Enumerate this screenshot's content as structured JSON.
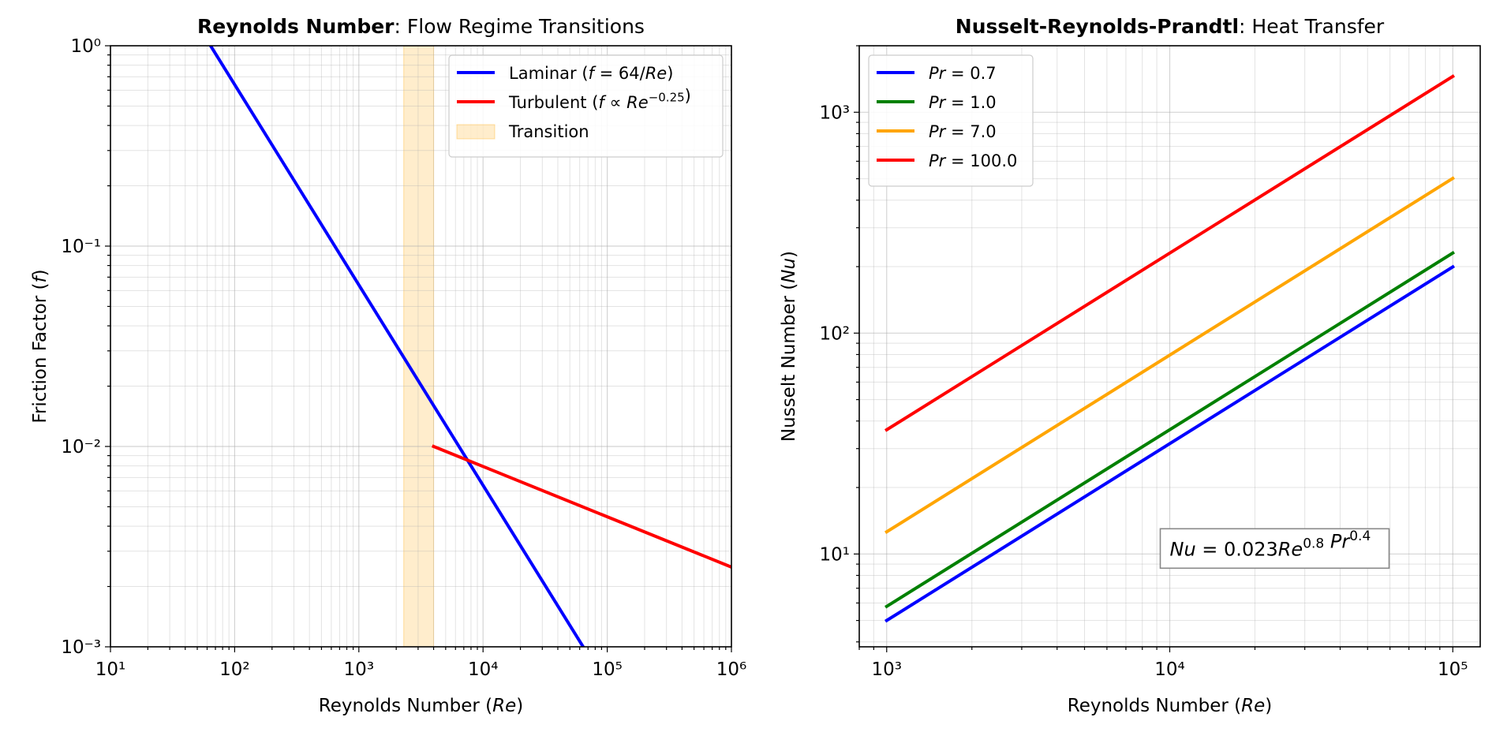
{
  "chart_data": [
    {
      "type": "line",
      "title_bold": "Reynolds Number",
      "title_rest": ": Flow Regime Transitions",
      "xlabel": "Reynolds Number (Re)",
      "ylabel": "Friction Factor (f)",
      "xscale": "log",
      "yscale": "log",
      "xlim": [
        10,
        1000000
      ],
      "ylim": [
        0.001,
        1
      ],
      "x_ticks": [
        10,
        100,
        1000,
        10000,
        100000,
        1000000
      ],
      "x_tick_labels": [
        "10¹",
        "10²",
        "10³",
        "10⁴",
        "10⁵",
        "10⁶"
      ],
      "y_ticks": [
        0.001,
        0.01,
        0.1,
        1
      ],
      "y_tick_labels": [
        "10⁻³",
        "10⁻²",
        "10⁻¹",
        "10⁰"
      ],
      "grid": true,
      "legend_position": "upper right",
      "series": [
        {
          "name": "Laminar (f = 64/Re)",
          "color": "#0000ff",
          "x": [
            10,
            64000
          ],
          "y": [
            6.4,
            0.001
          ]
        },
        {
          "name": "Turbulent (f ∝ Re^−0.25)",
          "color": "#ff0000",
          "x": [
            4000,
            1000000
          ],
          "y": [
            0.01,
            0.0025
          ]
        }
      ],
      "shaded_regions": [
        {
          "name": "Transition",
          "x_from": 2300,
          "x_to": 4000,
          "color": "#ffa500",
          "opacity": 0.2
        }
      ]
    },
    {
      "type": "line",
      "title_bold": "Nusselt-Reynolds-Prandtl",
      "title_rest": ": Heat Transfer",
      "xlabel": "Reynolds Number (Re)",
      "ylabel": "Nusselt Number (Nu)",
      "xscale": "log",
      "yscale": "log",
      "xlim": [
        800,
        125000
      ],
      "ylim": [
        3.8,
        2000
      ],
      "x_ticks": [
        1000,
        10000,
        100000
      ],
      "x_tick_labels": [
        "10³",
        "10⁴",
        "10⁵"
      ],
      "y_ticks": [
        10,
        100,
        1000
      ],
      "y_tick_labels": [
        "10¹",
        "10²",
        "10³"
      ],
      "grid": true,
      "legend_position": "upper left",
      "series": [
        {
          "name": "Pr = 0.7",
          "color": "#0000ff",
          "x": [
            1000,
            100000
          ],
          "y": [
            5.0,
            199.5
          ]
        },
        {
          "name": "Pr = 1.0",
          "color": "#008000",
          "x": [
            1000,
            100000
          ],
          "y": [
            5.79,
            230.5
          ]
        },
        {
          "name": "Pr = 7.0",
          "color": "#ffa500",
          "x": [
            1000,
            100000
          ],
          "y": [
            12.6,
            501.7
          ]
        },
        {
          "name": "Pr = 100.0",
          "color": "#ff0000",
          "x": [
            1000,
            100000
          ],
          "y": [
            36.5,
            1453
          ]
        }
      ],
      "annotation": {
        "text": "Nu = 0.023Re^0.8 Pr^0.4",
        "x": 10000,
        "y": 10
      }
    }
  ]
}
